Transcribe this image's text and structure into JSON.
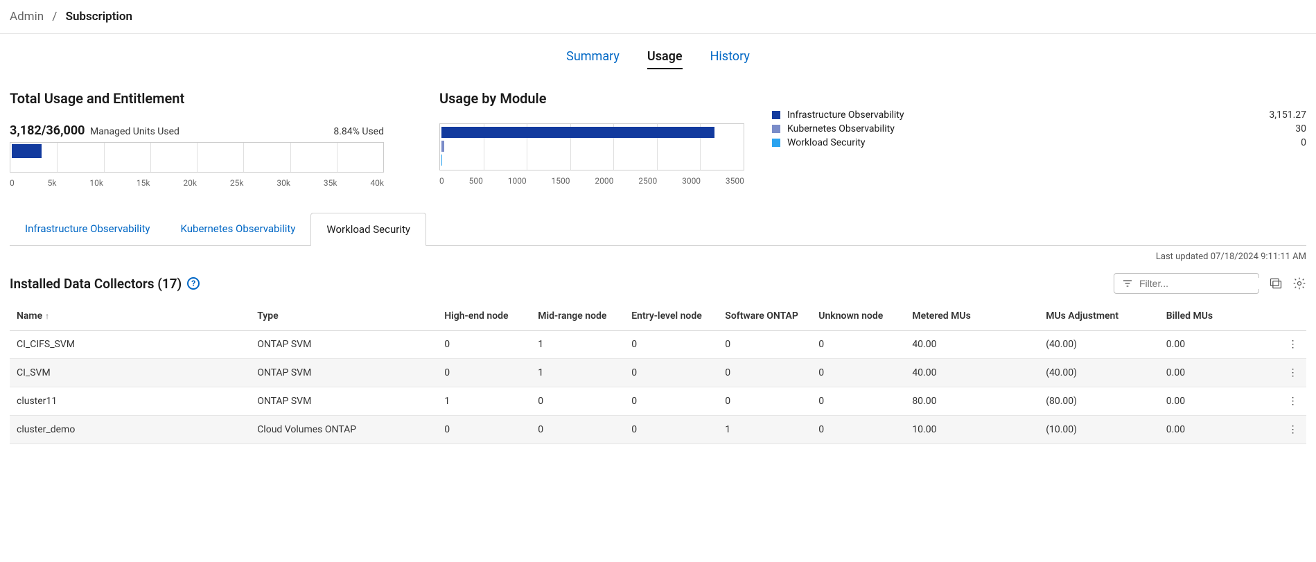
{
  "breadcrumb": {
    "root": "Admin",
    "sep": "/",
    "current": "Subscription"
  },
  "topnav": {
    "items": [
      {
        "label": "Summary",
        "active": false
      },
      {
        "label": "Usage",
        "active": true
      },
      {
        "label": "History",
        "active": false
      }
    ]
  },
  "totalUsage": {
    "title": "Total Usage and Entitlement",
    "used": 3182,
    "total": 36000,
    "usedFormatted": "3,182/36,000",
    "unitsLabel": "Managed Units Used",
    "pctUsed": "8.84% Used",
    "fillColor": "#123a9e",
    "trackBorder": "#cccccc",
    "gridColor": "#e0e0e0",
    "axis": {
      "min": 0,
      "max": 40000,
      "step": 5000,
      "ticks": [
        "0",
        "5k",
        "10k",
        "15k",
        "20k",
        "25k",
        "30k",
        "35k",
        "40k"
      ]
    },
    "barHeightPx": 20
  },
  "moduleUsage": {
    "title": "Usage by Module",
    "axis": {
      "min": 0,
      "max": 3500,
      "step": 500,
      "ticks": [
        "0",
        "500",
        "1000",
        "1500",
        "2000",
        "2500",
        "3000",
        "3500"
      ]
    },
    "gridColor": "#e0e0e0",
    "items": [
      {
        "label": "Infrastructure Observability",
        "value": 3151.27,
        "valueFormatted": "3,151.27",
        "color": "#123a9e"
      },
      {
        "label": "Kubernetes Observability",
        "value": 30,
        "valueFormatted": "30",
        "color": "#7a8cc9"
      },
      {
        "label": "Workload Security",
        "value": 0,
        "valueFormatted": "0",
        "color": "#2aa3ef"
      }
    ],
    "barHeightPx": 16,
    "barGapPx": 4
  },
  "subtabs": {
    "items": [
      {
        "label": "Infrastructure Observability",
        "active": false
      },
      {
        "label": "Kubernetes Observability",
        "active": false
      },
      {
        "label": "Workload Security",
        "active": true
      }
    ]
  },
  "meta": {
    "lastUpdated": "Last updated 07/18/2024 9:11:11 AM"
  },
  "collectors": {
    "titlePrefix": "Installed Data Collectors",
    "count": 17,
    "filterPlaceholder": "Filter...",
    "columns": [
      "Name",
      "Type",
      "High-end node",
      "Mid-range node",
      "Entry-level node",
      "Software ONTAP",
      "Unknown node",
      "Metered MUs",
      "MUs Adjustment",
      "Billed MUs"
    ],
    "colWidths": [
      "18%",
      "14%",
      "7%",
      "7%",
      "7%",
      "7%",
      "7%",
      "10%",
      "9%",
      "9%",
      "2%"
    ],
    "sortCol": 0,
    "sortDir": "asc",
    "rows": [
      {
        "name": "CI_CIFS_SVM",
        "type": "ONTAP SVM",
        "hi": "0",
        "mid": "1",
        "entry": "0",
        "sw": "0",
        "unk": "0",
        "metered": "40.00",
        "adj": "(40.00)",
        "billed": "0.00"
      },
      {
        "name": "CI_SVM",
        "type": "ONTAP SVM",
        "hi": "0",
        "mid": "1",
        "entry": "0",
        "sw": "0",
        "unk": "0",
        "metered": "40.00",
        "adj": "(40.00)",
        "billed": "0.00"
      },
      {
        "name": "cluster11",
        "type": "ONTAP SVM",
        "hi": "1",
        "mid": "0",
        "entry": "0",
        "sw": "0",
        "unk": "0",
        "metered": "80.00",
        "adj": "(80.00)",
        "billed": "0.00"
      },
      {
        "name": "cluster_demo",
        "type": "Cloud Volumes ONTAP",
        "hi": "0",
        "mid": "0",
        "entry": "0",
        "sw": "1",
        "unk": "0",
        "metered": "10.00",
        "adj": "(10.00)",
        "billed": "0.00"
      }
    ]
  },
  "colors": {
    "link": "#0067c5",
    "text": "#1a1a1a",
    "muted": "#666666",
    "border": "#d0d0d0"
  }
}
